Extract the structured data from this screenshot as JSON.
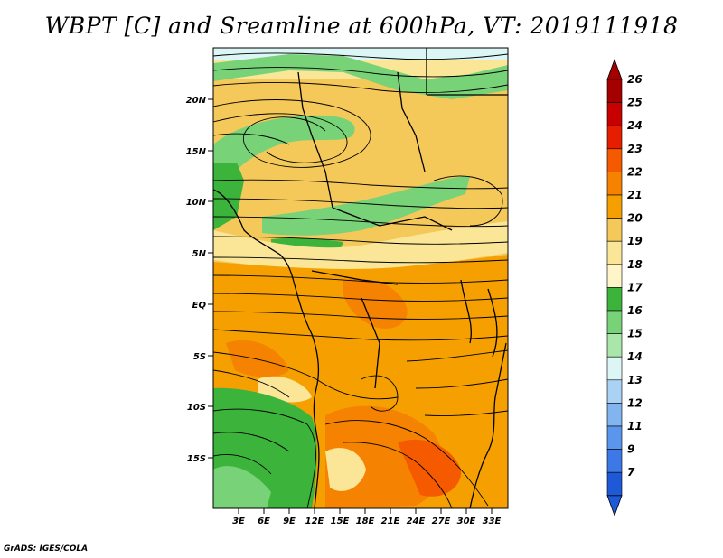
{
  "title": "WBPT [C] and Sreamline at 600hPa, VT: 2019111918",
  "footer": "GrADS: IGES/COLA",
  "map": {
    "lat_ticks": [
      "20N",
      "15N",
      "10N",
      "5N",
      "EQ",
      "5S",
      "10S",
      "15S"
    ],
    "lon_ticks": [
      "3E",
      "6E",
      "9E",
      "12E",
      "15E",
      "18E",
      "21E",
      "24E",
      "27E",
      "30E",
      "33E"
    ]
  },
  "colorbar": {
    "labels": [
      "26",
      "25",
      "24",
      "23",
      "22",
      "21",
      "20",
      "19",
      "18",
      "17",
      "16",
      "15",
      "14",
      "13",
      "12",
      "11",
      "9",
      "7"
    ],
    "colors": [
      "#a50000",
      "#c80000",
      "#e61e00",
      "#f55a00",
      "#f58200",
      "#f5a000",
      "#f5c85a",
      "#fae696",
      "#fff5c8",
      "#3cb43c",
      "#78d278",
      "#aae6aa",
      "#dcf5f5",
      "#aad2f5",
      "#82b4f0",
      "#5a96eb",
      "#3c78e6",
      "#1e5ad7"
    ]
  }
}
